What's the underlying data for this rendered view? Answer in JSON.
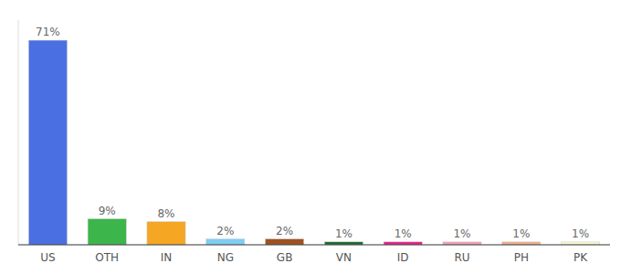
{
  "chart_data": {
    "type": "bar",
    "categories": [
      "US",
      "OTH",
      "IN",
      "NG",
      "GB",
      "VN",
      "ID",
      "RU",
      "PH",
      "PK"
    ],
    "values": [
      71,
      9,
      8,
      2,
      2,
      1,
      1,
      1,
      1,
      1
    ],
    "value_labels": [
      "71%",
      "9%",
      "8%",
      "2%",
      "2%",
      "1%",
      "1%",
      "1%",
      "1%",
      "1%"
    ],
    "colors": [
      "#4a6fe3",
      "#3cb54a",
      "#f5a623",
      "#7ecef4",
      "#a05020",
      "#1a6b2a",
      "#e91e8c",
      "#f4a0b8",
      "#f0b090",
      "#f8f8d0"
    ],
    "ylim": [
      0,
      78
    ],
    "data_labels": true,
    "tick_labels": "x",
    "grid": false
  }
}
